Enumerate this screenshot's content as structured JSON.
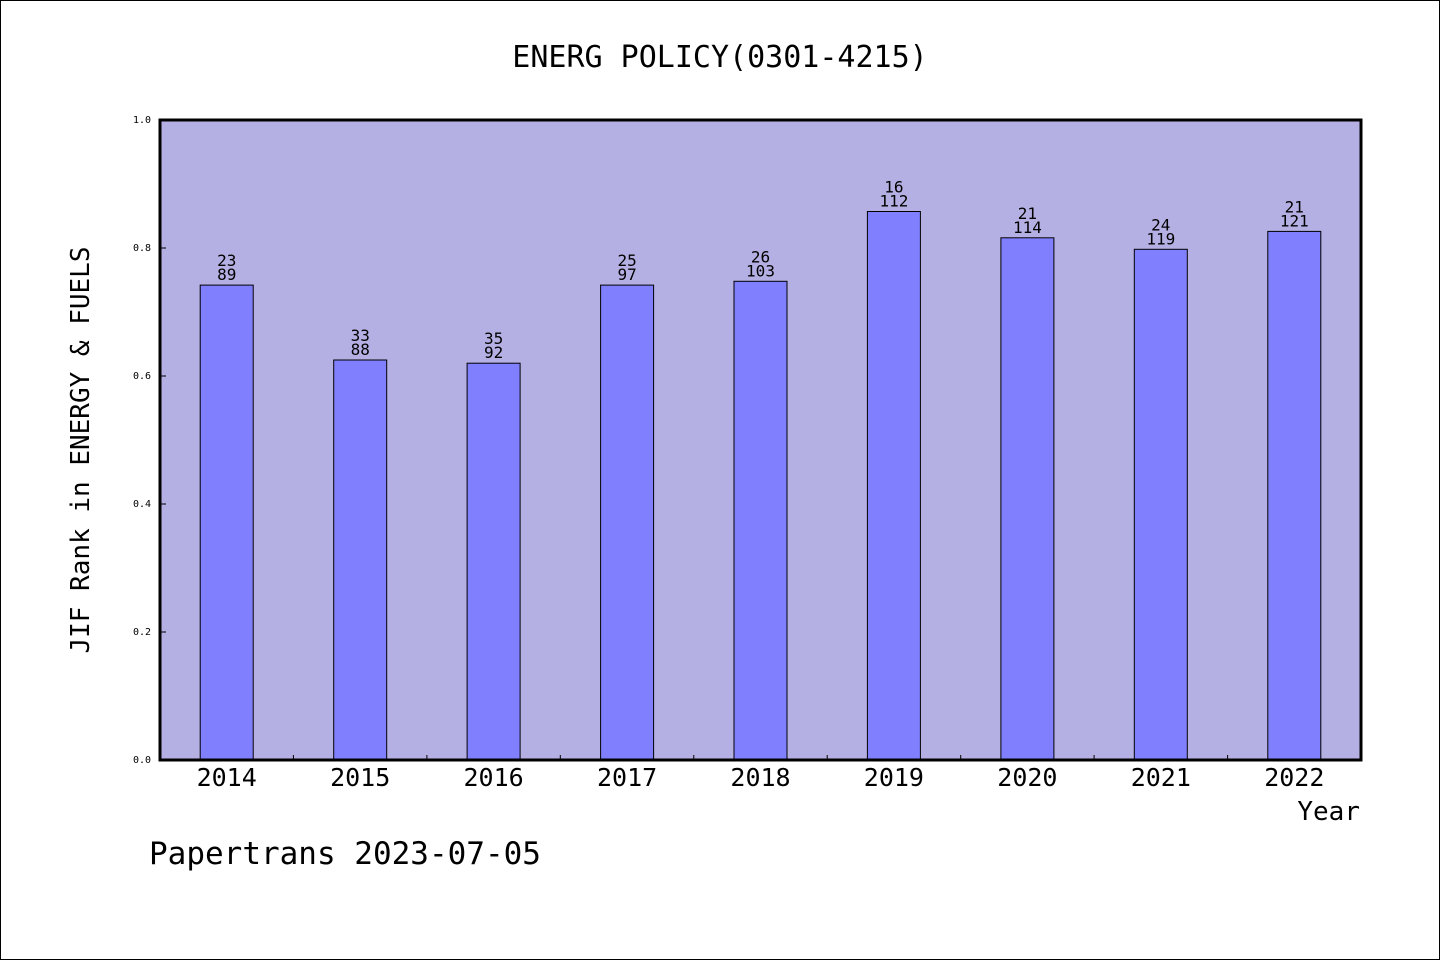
{
  "chart_data": {
    "type": "bar",
    "title": "ENERG POLICY(0301-4215)",
    "xlabel": "Year",
    "ylabel": "JIF Rank in ENERGY & FUELS",
    "ylim": [
      0,
      1.0
    ],
    "yticks": [
      "0.0",
      "0.2",
      "0.4",
      "0.6",
      "0.8",
      "1.0"
    ],
    "categories": [
      "2014",
      "2015",
      "2016",
      "2017",
      "2018",
      "2019",
      "2020",
      "2021",
      "2022"
    ],
    "values": [
      0.742,
      0.625,
      0.62,
      0.742,
      0.748,
      0.857,
      0.816,
      0.798,
      0.826
    ],
    "rank": [
      "23",
      "33",
      "35",
      "25",
      "26",
      "16",
      "21",
      "24",
      "21"
    ],
    "total": [
      "89",
      "88",
      "92",
      "97",
      "103",
      "112",
      "114",
      "119",
      "121"
    ],
    "grid": false,
    "colors": {
      "plot_background": "#b5b0e3",
      "bar_fill": "#8080ff",
      "bar_stroke": "#000000"
    }
  },
  "footer": {
    "credit": "Papertrans 2023-07-05"
  }
}
